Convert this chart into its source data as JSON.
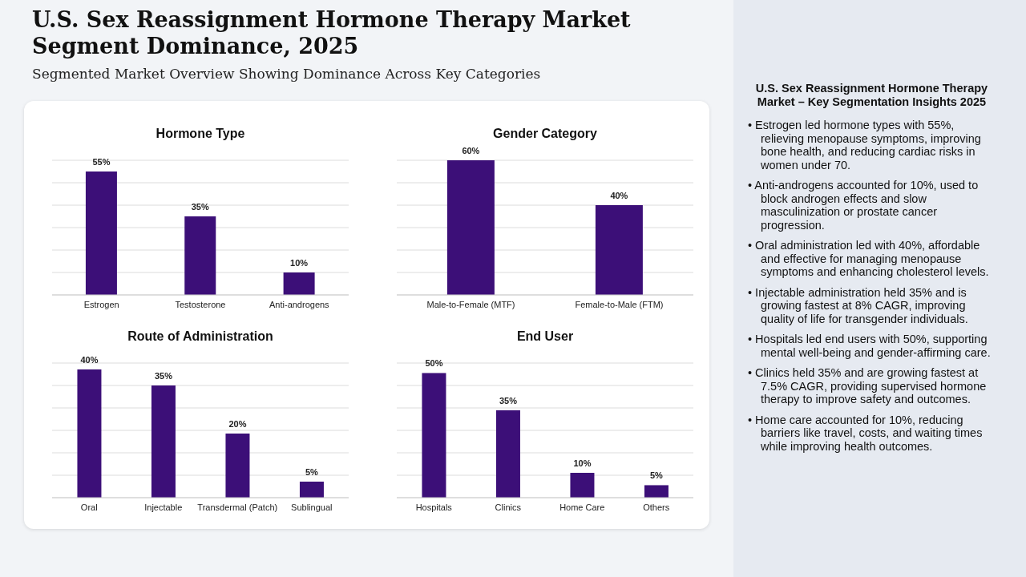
{
  "chart_data": [
    {
      "type": "other",
      "title": "U.S. Sex Reassignment Hormone Therapy Market Segment Dominance, 2025",
      "subtitle": "Segmented Market Overview Showing Dominance Across Key Categories"
    },
    {
      "type": "bar",
      "title": "Hormone Type",
      "categories": [
        "Estrogen",
        "Testosterone",
        "Anti-androgens"
      ],
      "values": [
        55,
        35,
        10
      ],
      "value_labels": [
        "55%",
        "35%",
        "10%"
      ],
      "color": "#3c0f78",
      "grid": "y",
      "tick_labels": "x"
    },
    {
      "type": "bar",
      "title": "Gender Category",
      "categories": [
        "Male-to-Female (MTF)",
        "Female-to-Male (FTM)"
      ],
      "values": [
        60,
        40
      ],
      "value_labels": [
        "60%",
        "40%"
      ],
      "color": "#3c0f78",
      "grid": "y",
      "tick_labels": "x"
    },
    {
      "type": "bar",
      "title": "Route of Administration",
      "categories": [
        "Oral",
        "Injectable",
        "Transdermal (Patch)",
        "Sublingual"
      ],
      "values": [
        40,
        35,
        20,
        5
      ],
      "value_labels": [
        "40%",
        "35%",
        "20%",
        "5%"
      ],
      "color": "#3c0f78",
      "grid": "y",
      "tick_labels": "x"
    },
    {
      "type": "bar",
      "title": "End User",
      "categories": [
        "Hospitals",
        "Clinics",
        "Home Care",
        "Others"
      ],
      "values": [
        50,
        35,
        10,
        5
      ],
      "value_labels": [
        "50%",
        "35%",
        "10%",
        "5%"
      ],
      "color": "#3c0f78",
      "grid": "y",
      "tick_labels": "x"
    },
    {
      "type": "other",
      "title": "U.S. Sex Reassignment Hormone Therapy Market – Key Segmentation Insights 2025",
      "annotations": [
        "• Estrogen led hormone types with 55%, relieving menopause symptoms, improving bone health, and reducing cardiac risks in women under 70.",
        "• Anti-androgens accounted for 10%, used to block androgen effects and slow masculinization or prostate cancer progression.",
        "• Oral administration led with 40%, affordable and effective for managing menopause symptoms and enhancing cholesterol levels.",
        "• Injectable administration held 35% and is growing fastest at 8% CAGR, improving quality of life for transgender individuals.",
        "• Hospitals led end users with 50%, supporting mental well-being and gender-affirming care.",
        "• Clinics held 35% and are growing fastest at 7.5% CAGR, providing supervised hormone therapy to improve safety and outcomes.",
        "• Home care accounted for 10%, reducing barriers like travel, costs, and waiting times while improving health outcomes."
      ]
    }
  ]
}
